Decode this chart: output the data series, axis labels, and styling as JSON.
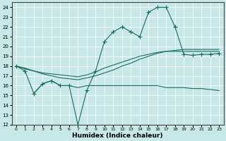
{
  "xlabel": "Humidex (Indice chaleur)",
  "bg_color": "#c8e8e8",
  "line_color": "#1a6b60",
  "grid_color": "#ffffff",
  "xlim": [
    -0.5,
    23.5
  ],
  "ylim": [
    12,
    24.5
  ],
  "yticks": [
    12,
    13,
    14,
    15,
    16,
    17,
    18,
    19,
    20,
    21,
    22,
    23,
    24
  ],
  "xticks": [
    0,
    1,
    2,
    3,
    4,
    5,
    6,
    7,
    8,
    9,
    10,
    11,
    12,
    13,
    14,
    15,
    16,
    17,
    18,
    19,
    20,
    21,
    22,
    23
  ],
  "curveA_x": [
    0,
    1,
    2,
    3,
    4,
    5,
    6,
    7,
    8,
    9,
    10,
    11,
    12,
    13,
    14,
    15,
    16,
    17,
    18
  ],
  "curveA_y": [
    18.0,
    17.5,
    15.2,
    16.2,
    16.5,
    16.0,
    16.0,
    12.0,
    15.5,
    17.5,
    20.5,
    21.5,
    22.0,
    21.5,
    21.0,
    23.5,
    24.0,
    24.0,
    22.0
  ],
  "curveB_x": [
    0,
    1,
    2,
    3,
    4,
    5,
    6,
    7,
    8,
    9,
    10,
    11,
    12,
    13,
    14,
    15,
    16,
    17,
    18,
    19,
    20,
    21,
    22,
    23
  ],
  "curveB_y": [
    18.0,
    17.7,
    17.5,
    17.3,
    17.2,
    17.1,
    17.0,
    16.9,
    17.1,
    17.4,
    17.8,
    18.1,
    18.4,
    18.7,
    19.0,
    19.2,
    19.4,
    19.5,
    19.5,
    19.5,
    19.5,
    19.5,
    19.5,
    19.5
  ],
  "curveC_x": [
    0,
    1,
    2,
    3,
    4,
    5,
    6,
    7,
    8,
    9,
    10,
    11,
    12,
    13,
    14,
    15,
    16,
    17,
    18,
    19,
    20,
    21,
    22,
    23
  ],
  "curveC_y": [
    18.0,
    17.8,
    17.5,
    17.2,
    17.0,
    16.8,
    16.7,
    16.6,
    16.8,
    17.0,
    17.3,
    17.6,
    18.0,
    18.3,
    18.7,
    19.0,
    19.3,
    19.5,
    19.6,
    19.7,
    19.7,
    19.7,
    19.7,
    19.7
  ],
  "curveD_x": [
    2,
    3,
    4,
    5,
    6,
    7,
    8,
    9,
    10,
    11,
    12,
    13,
    14,
    15,
    16,
    17,
    18,
    19,
    20,
    21,
    22,
    23
  ],
  "curveD_y": [
    15.2,
    16.2,
    16.5,
    16.0,
    16.0,
    15.8,
    16.0,
    16.0,
    16.0,
    16.0,
    16.0,
    16.0,
    16.0,
    16.0,
    16.0,
    15.8,
    15.8,
    15.8,
    15.7,
    15.7,
    15.6,
    15.5
  ],
  "curveE_x": [
    18,
    19,
    20,
    21,
    22,
    23
  ],
  "curveE_y": [
    22.0,
    19.2,
    19.1,
    19.2,
    19.2,
    19.3
  ]
}
